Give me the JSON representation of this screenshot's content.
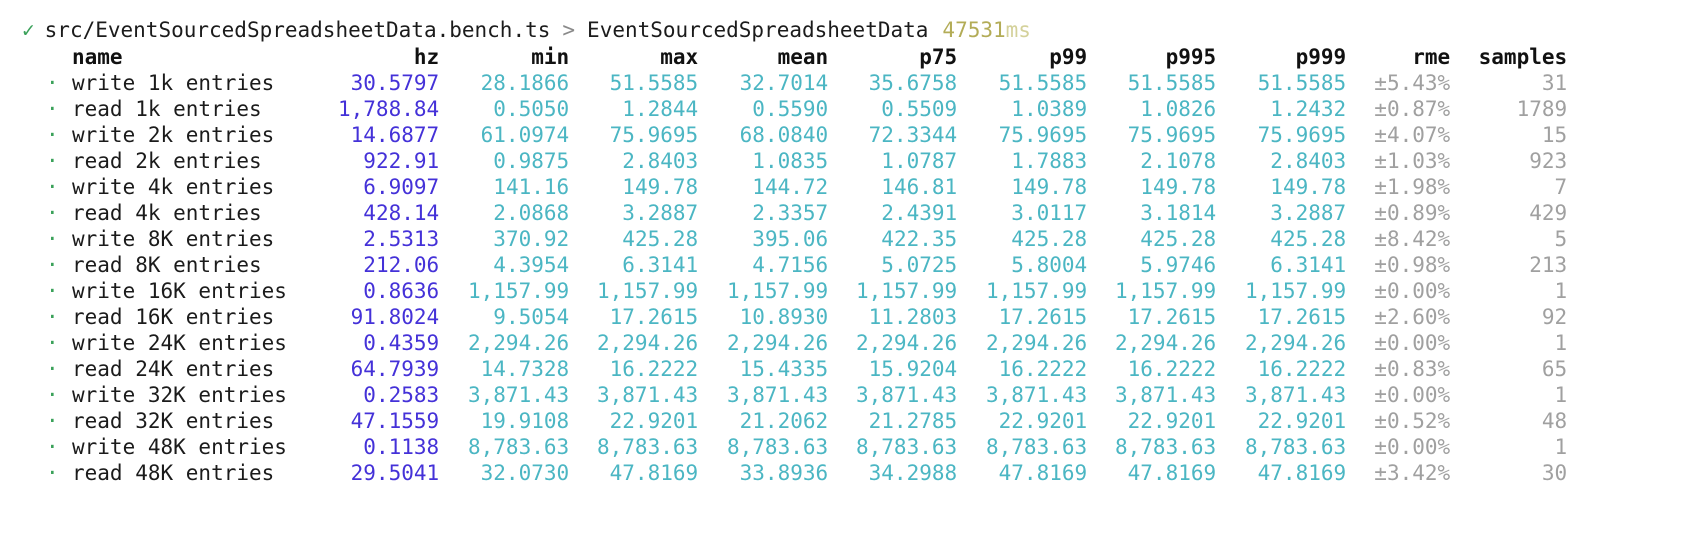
{
  "header": {
    "check_icon": "check-icon",
    "suite_path": "src/EventSourcedSpreadsheetData.bench.ts",
    "separator": ">",
    "suite_name": "EventSourcedSpreadsheetData",
    "duration_value": "47531",
    "duration_unit": "ms"
  },
  "colors": {
    "check": "#3aa15a",
    "hz": "#4431d8",
    "stats": "#4bb6c3",
    "muted": "#a0a0a0",
    "duration": "#b3ac57"
  },
  "table": {
    "columns": [
      "name",
      "hz",
      "min",
      "max",
      "mean",
      "p75",
      "p99",
      "p995",
      "p999",
      "rme",
      "samples"
    ],
    "bullet": "·",
    "rows": [
      {
        "name": "write 1k entries",
        "hz": "30.5797",
        "min": "28.1866",
        "max": "51.5585",
        "mean": "32.7014",
        "p75": "35.6758",
        "p99": "51.5585",
        "p995": "51.5585",
        "p999": "51.5585",
        "rme": "±5.43%",
        "samples": "31"
      },
      {
        "name": "read 1k entries",
        "hz": "1,788.84",
        "min": "0.5050",
        "max": "1.2844",
        "mean": "0.5590",
        "p75": "0.5509",
        "p99": "1.0389",
        "p995": "1.0826",
        "p999": "1.2432",
        "rme": "±0.87%",
        "samples": "1789"
      },
      {
        "name": "write 2k entries",
        "hz": "14.6877",
        "min": "61.0974",
        "max": "75.9695",
        "mean": "68.0840",
        "p75": "72.3344",
        "p99": "75.9695",
        "p995": "75.9695",
        "p999": "75.9695",
        "rme": "±4.07%",
        "samples": "15"
      },
      {
        "name": "read 2k entries",
        "hz": "922.91",
        "min": "0.9875",
        "max": "2.8403",
        "mean": "1.0835",
        "p75": "1.0787",
        "p99": "1.7883",
        "p995": "2.1078",
        "p999": "2.8403",
        "rme": "±1.03%",
        "samples": "923"
      },
      {
        "name": "write 4k entries",
        "hz": "6.9097",
        "min": "141.16",
        "max": "149.78",
        "mean": "144.72",
        "p75": "146.81",
        "p99": "149.78",
        "p995": "149.78",
        "p999": "149.78",
        "rme": "±1.98%",
        "samples": "7"
      },
      {
        "name": "read 4k entries",
        "hz": "428.14",
        "min": "2.0868",
        "max": "3.2887",
        "mean": "2.3357",
        "p75": "2.4391",
        "p99": "3.0117",
        "p995": "3.1814",
        "p999": "3.2887",
        "rme": "±0.89%",
        "samples": "429"
      },
      {
        "name": "write 8K entries",
        "hz": "2.5313",
        "min": "370.92",
        "max": "425.28",
        "mean": "395.06",
        "p75": "422.35",
        "p99": "425.28",
        "p995": "425.28",
        "p999": "425.28",
        "rme": "±8.42%",
        "samples": "5"
      },
      {
        "name": "read 8K entries",
        "hz": "212.06",
        "min": "4.3954",
        "max": "6.3141",
        "mean": "4.7156",
        "p75": "5.0725",
        "p99": "5.8004",
        "p995": "5.9746",
        "p999": "6.3141",
        "rme": "±0.98%",
        "samples": "213"
      },
      {
        "name": "write 16K entries",
        "hz": "0.8636",
        "min": "1,157.99",
        "max": "1,157.99",
        "mean": "1,157.99",
        "p75": "1,157.99",
        "p99": "1,157.99",
        "p995": "1,157.99",
        "p999": "1,157.99",
        "rme": "±0.00%",
        "samples": "1"
      },
      {
        "name": "read 16K entries",
        "hz": "91.8024",
        "min": "9.5054",
        "max": "17.2615",
        "mean": "10.8930",
        "p75": "11.2803",
        "p99": "17.2615",
        "p995": "17.2615",
        "p999": "17.2615",
        "rme": "±2.60%",
        "samples": "92"
      },
      {
        "name": "write 24K entries",
        "hz": "0.4359",
        "min": "2,294.26",
        "max": "2,294.26",
        "mean": "2,294.26",
        "p75": "2,294.26",
        "p99": "2,294.26",
        "p995": "2,294.26",
        "p999": "2,294.26",
        "rme": "±0.00%",
        "samples": "1"
      },
      {
        "name": "read 24K entries",
        "hz": "64.7939",
        "min": "14.7328",
        "max": "16.2222",
        "mean": "15.4335",
        "p75": "15.9204",
        "p99": "16.2222",
        "p995": "16.2222",
        "p999": "16.2222",
        "rme": "±0.83%",
        "samples": "65"
      },
      {
        "name": "write 32K entries",
        "hz": "0.2583",
        "min": "3,871.43",
        "max": "3,871.43",
        "mean": "3,871.43",
        "p75": "3,871.43",
        "p99": "3,871.43",
        "p995": "3,871.43",
        "p999": "3,871.43",
        "rme": "±0.00%",
        "samples": "1"
      },
      {
        "name": "read 32K entries",
        "hz": "47.1559",
        "min": "19.9108",
        "max": "22.9201",
        "mean": "21.2062",
        "p75": "21.2785",
        "p99": "22.9201",
        "p995": "22.9201",
        "p999": "22.9201",
        "rme": "±0.52%",
        "samples": "48"
      },
      {
        "name": "write 48K entries",
        "hz": "0.1138",
        "min": "8,783.63",
        "max": "8,783.63",
        "mean": "8,783.63",
        "p75": "8,783.63",
        "p99": "8,783.63",
        "p995": "8,783.63",
        "p999": "8,783.63",
        "rme": "±0.00%",
        "samples": "1"
      },
      {
        "name": "read 48K entries",
        "hz": "29.5041",
        "min": "32.0730",
        "max": "47.8169",
        "mean": "33.8936",
        "p75": "34.2988",
        "p99": "47.8169",
        "p995": "47.8169",
        "p999": "47.8169",
        "rme": "±3.42%",
        "samples": "30"
      }
    ]
  }
}
